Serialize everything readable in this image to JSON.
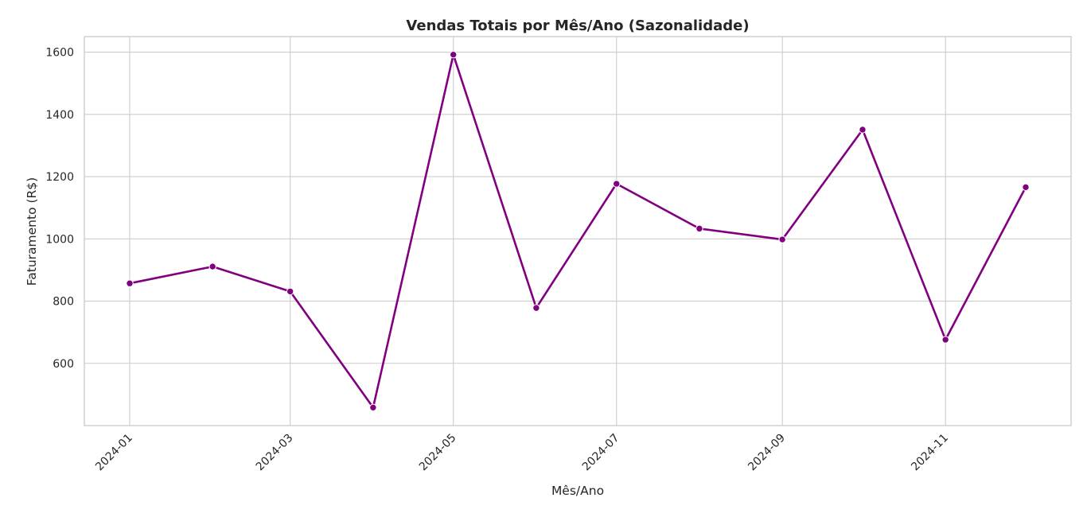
{
  "chart_data": {
    "type": "line",
    "title": "Vendas Totais por Mês/Ano (Sazonalidade)",
    "xlabel": "Mês/Ano",
    "ylabel": "Faturamento (R$)",
    "x": [
      "2024-01",
      "2024-02",
      "2024-03",
      "2024-04",
      "2024-05",
      "2024-06",
      "2024-07",
      "2024-08",
      "2024-09",
      "2024-10",
      "2024-11",
      "2024-12"
    ],
    "series": [
      {
        "values": [
          857,
          911,
          831,
          458,
          1592,
          778,
          1177,
          1033,
          998,
          1351,
          676,
          1166
        ]
      }
    ],
    "x_ticks": [
      "2024-01",
      "2024-03",
      "2024-05",
      "2024-07",
      "2024-09",
      "2024-11"
    ],
    "y_ticks": [
      600,
      800,
      1000,
      1200,
      1400,
      1600
    ],
    "ylim": [
      400,
      1650
    ],
    "line_color": "#800080",
    "grid": true,
    "legend": false
  }
}
